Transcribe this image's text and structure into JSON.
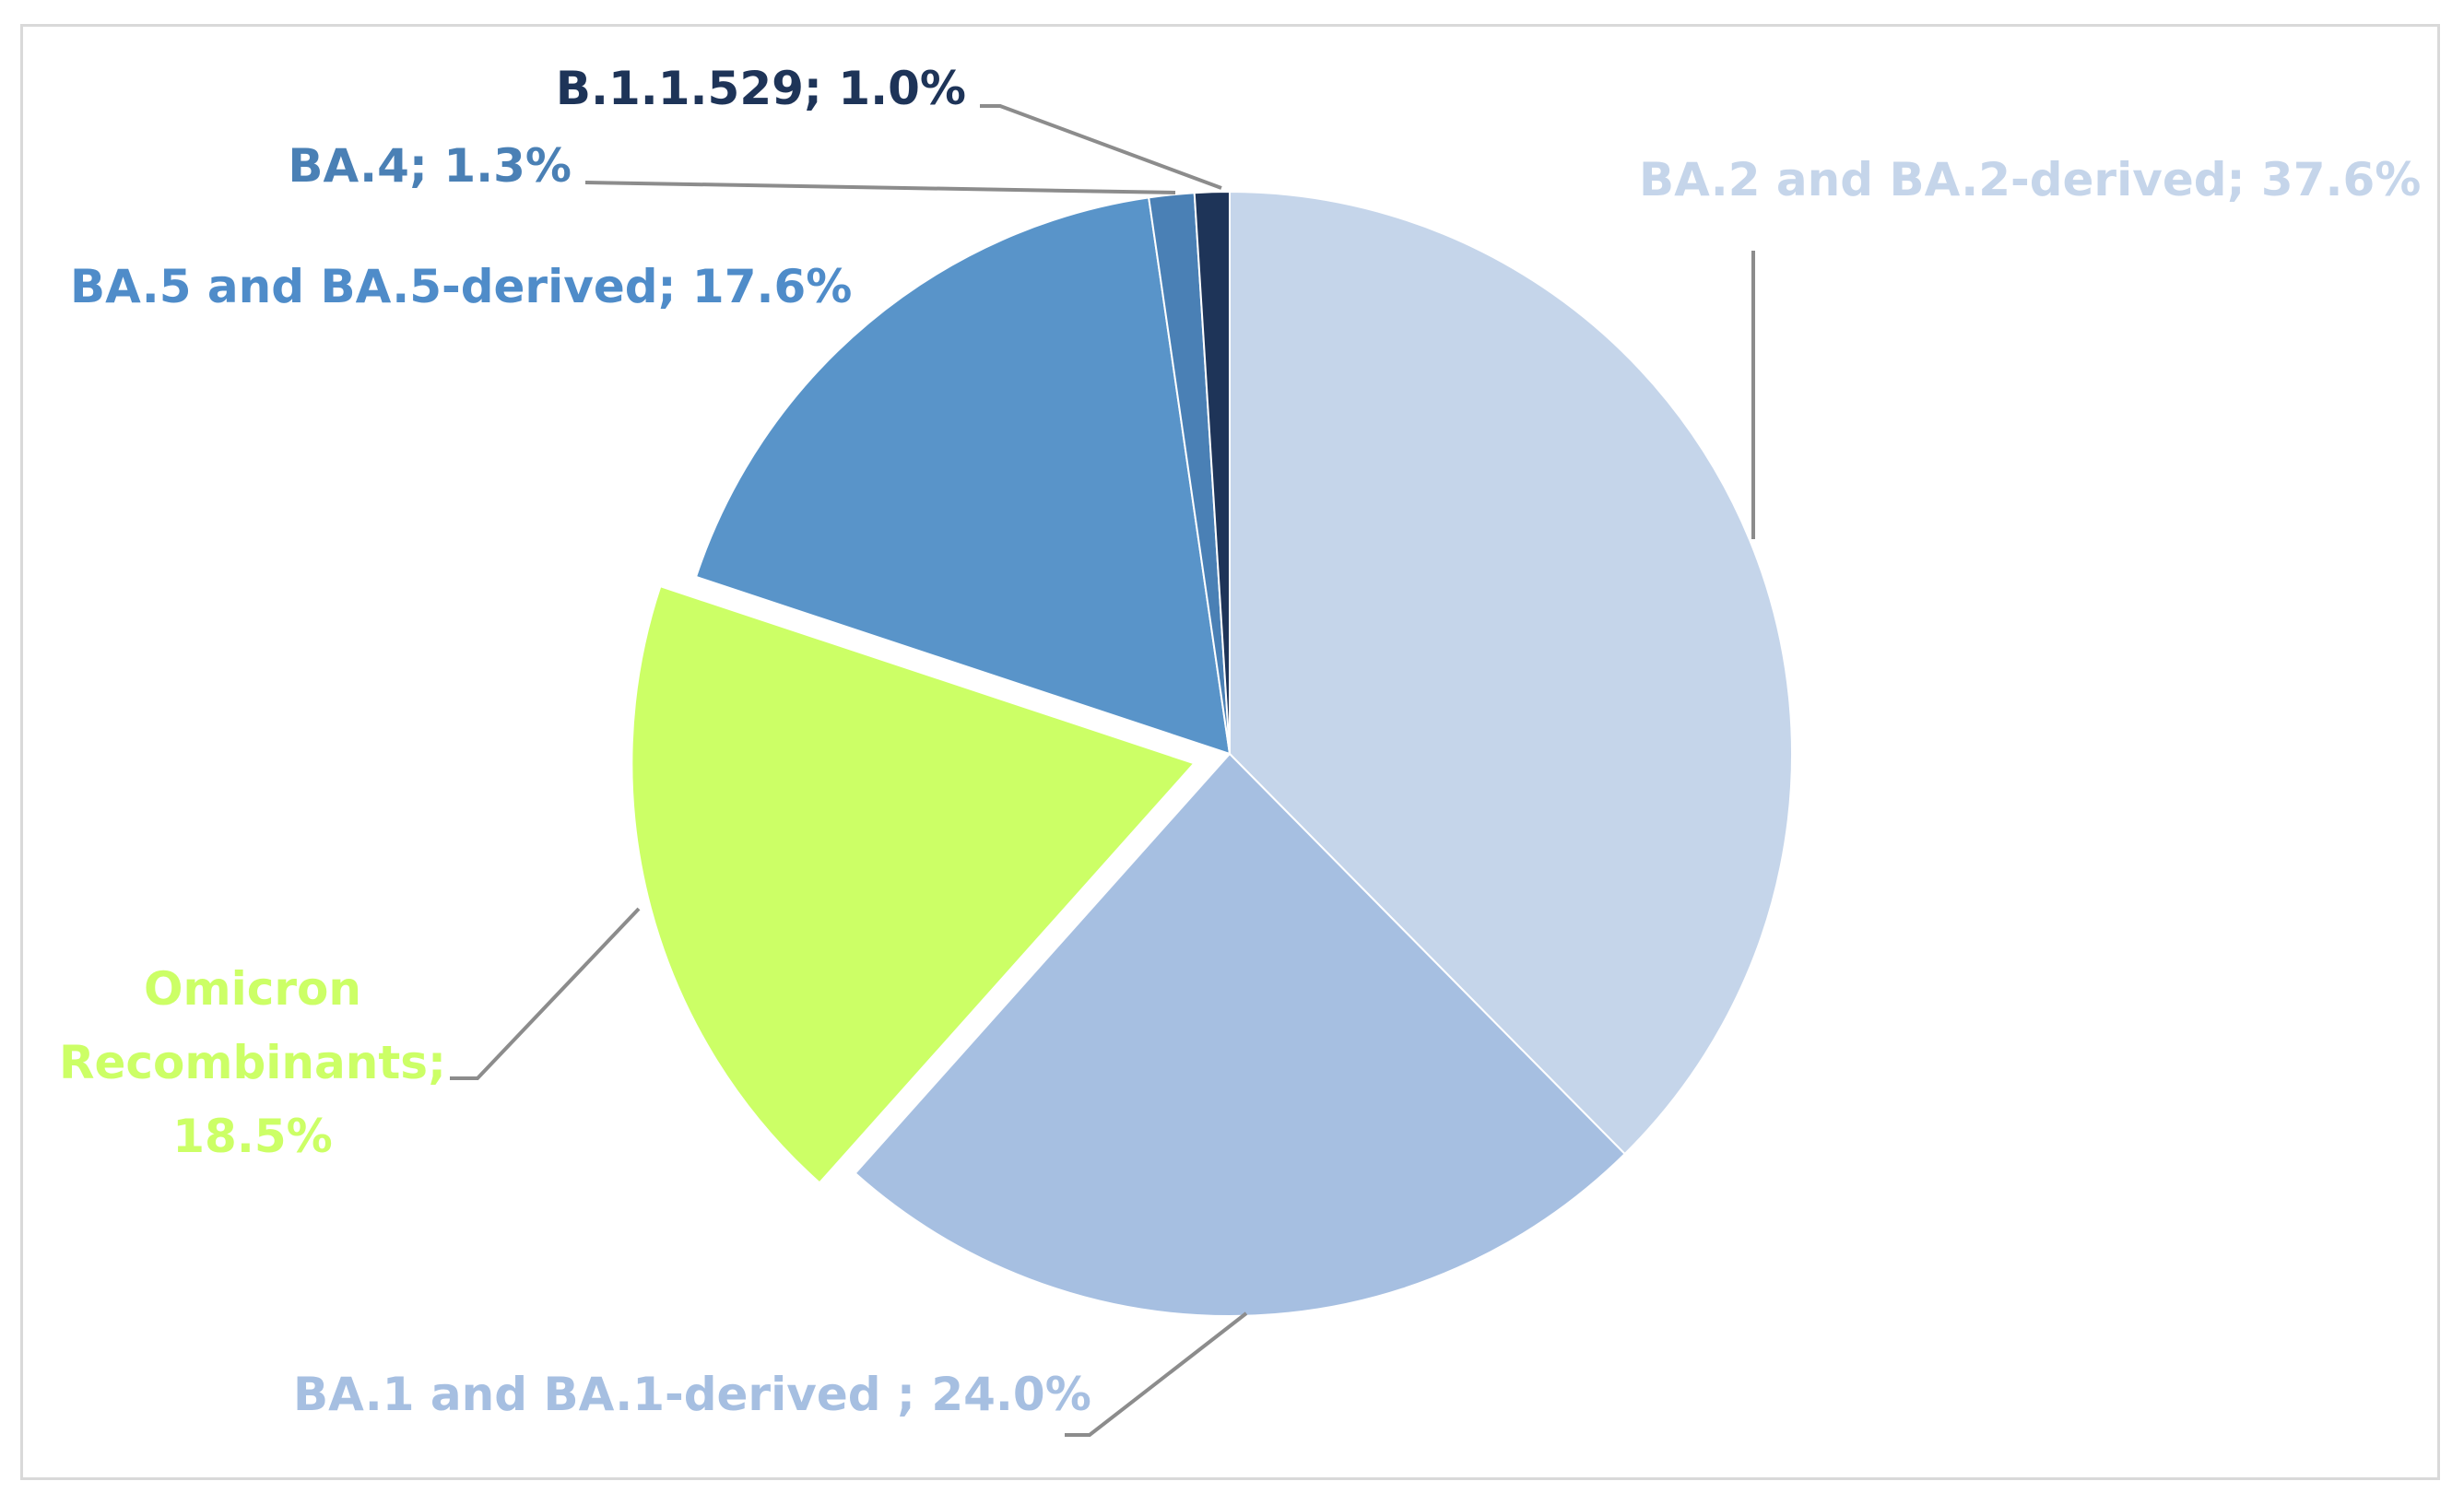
{
  "chart_data": {
    "type": "pie",
    "title": "",
    "slices": [
      {
        "name": "BA.2 and BA.2-derived",
        "value": 37.6,
        "label": "BA.2 and BA.2-derived; 37.6%",
        "color": "#c5d5ea",
        "exploded": false
      },
      {
        "name": "BA.1 and BA.1-derived",
        "value": 24.0,
        "label": "BA.1 and BA.1-derived ; 24.0%",
        "color": "#a6bfe1",
        "exploded": false
      },
      {
        "name": "Omicron Recombinants",
        "value": 18.5,
        "label_lines": [
          "Omicron",
          "Recombinants;",
          "18.5%"
        ],
        "color": "#ccff66",
        "exploded": true
      },
      {
        "name": "BA.5 and BA.5-derived",
        "value": 17.6,
        "label": "BA.5 and BA.5-derived; 17.6%",
        "color": "#5994c9",
        "exploded": false
      },
      {
        "name": "BA.4",
        "value": 1.3,
        "label": "BA.4; 1.3%",
        "color": "#4a80b5",
        "exploded": false
      },
      {
        "name": "B.1.1.529",
        "value": 1.0,
        "label": "B.1.1.529; 1.0%",
        "color": "#1e3458",
        "exploded": false
      }
    ],
    "label_colors": {
      "BA.2 and BA.2-derived": "#c5d5ea",
      "BA.1 and BA.1-derived": "#a6bfe1",
      "Omicron Recombinants": "#ccff66",
      "BA.5 and BA.5-derived": "#4f8cc9",
      "BA.4": "#4a80b5",
      "B.1.1.529": "#1e3458"
    },
    "leader_line_color": "#8c8c8c",
    "legend": "none"
  }
}
